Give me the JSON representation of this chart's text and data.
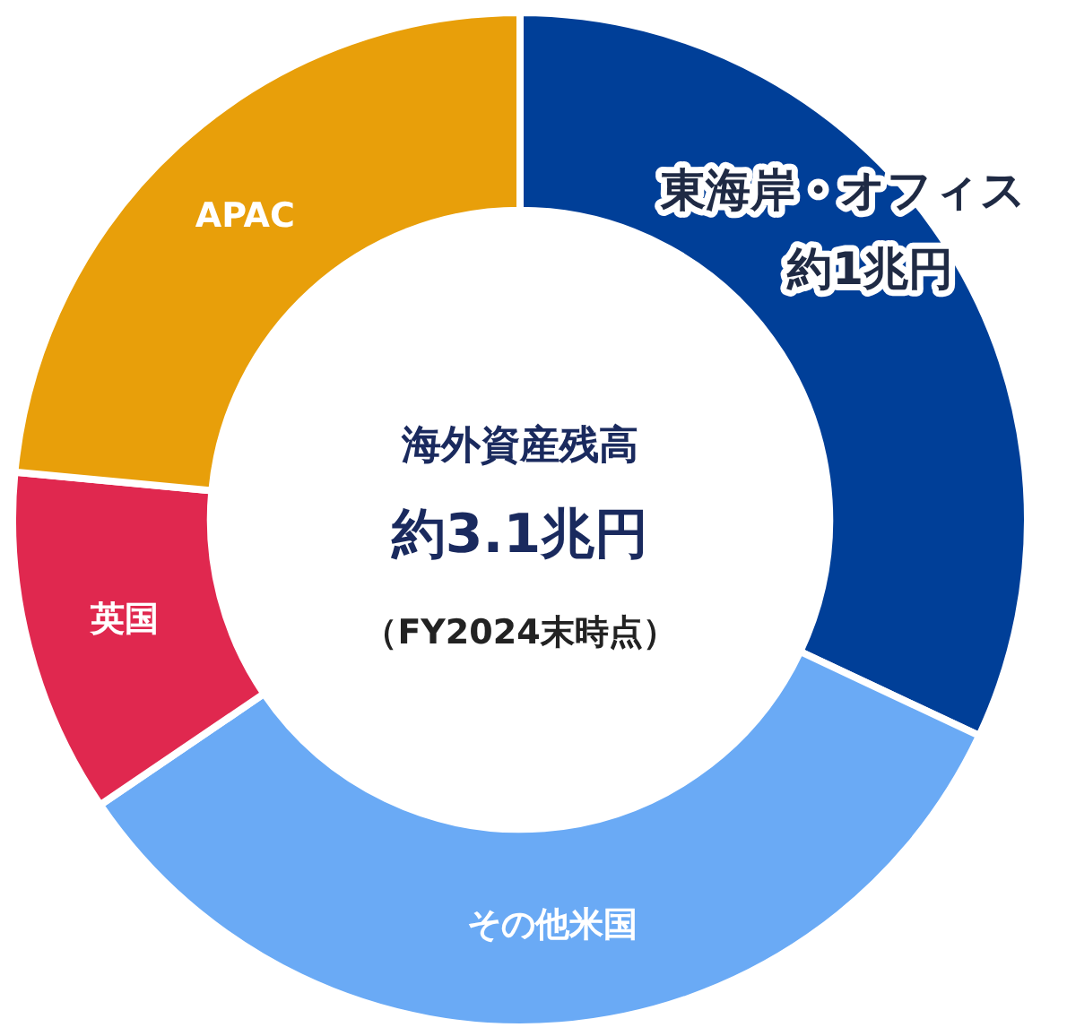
{
  "chart_data": {
    "type": "donut",
    "title": "海外資産残高",
    "categories": [
      "東海岸・オフィス",
      "その他米国",
      "英国",
      "APAC"
    ],
    "values": [
      32,
      33.5,
      11,
      23.5
    ],
    "colors": [
      "#003f98",
      "#6aaaf5",
      "#e0284f",
      "#e89f0a"
    ],
    "annotations": [
      "約1兆円",
      "約3.1兆円",
      "（FY2024末時点）"
    ],
    "legend": false
  }
}
